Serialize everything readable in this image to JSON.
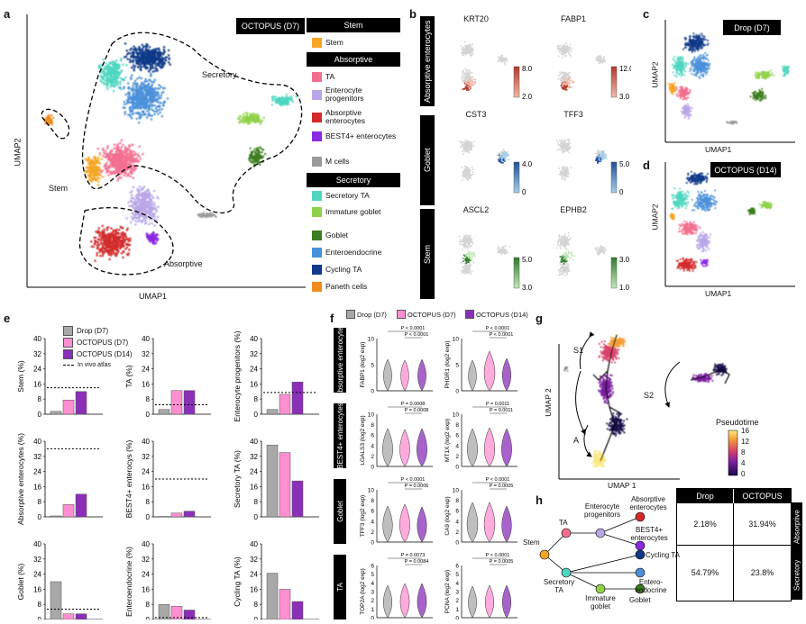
{
  "panel_letters": [
    "a",
    "b",
    "c",
    "d",
    "e",
    "f",
    "g",
    "h"
  ],
  "colors": {
    "stem": "#f5a623",
    "ta": "#f36f8f",
    "enterocyte_progenitors": "#b8a6e8",
    "absorptive_enterocytes": "#d42a2a",
    "best4_enterocytes": "#8a2be2",
    "m_cells": "#9a9a9a",
    "secretory_ta": "#4fd6c0",
    "immature_goblet": "#8fd14a",
    "goblet": "#3c7d1f",
    "enteroendocrine": "#4a90d9",
    "cycling_ta": "#0f3a8a",
    "paneth_cells": "#f08c1e",
    "drop": "#a8a8a8",
    "octopus_d7": "#ff8fd0",
    "octopus_d14": "#8a2fb8"
  },
  "panel_a": {
    "title_box": "OCTOPUS (D7)",
    "xlabel": "UMAP1",
    "ylabel": "UMAP2",
    "region_labels": [
      "Secretory",
      "Stem",
      "Absorptive"
    ],
    "legend": {
      "stem_header": "Stem",
      "absorptive_header": "Absorptive",
      "secretory_header": "Secretory",
      "items_stem": [
        "Stem"
      ],
      "items_absorptive": [
        "TA",
        "Enterocyte progenitors",
        "Absorptive enterocytes",
        "BEST4+ enterocytes",
        "M cells"
      ],
      "items_secretory": [
        "Secretory TA",
        "Immature goblet",
        "Goblet",
        "Enteroendocrine",
        "Cycling TA",
        "Paneth cells"
      ]
    }
  },
  "panel_b": {
    "rows": [
      {
        "row_label": "Absorptive enterocytes",
        "genes": [
          "KRT20",
          "FABP1"
        ],
        "scales": [
          [
            "8.0",
            "2.0"
          ],
          [
            "12.0",
            "3.0"
          ]
        ]
      },
      {
        "row_label": "Goblet",
        "genes": [
          "CST3",
          "TFF3"
        ],
        "scales": [
          [
            "4.0",
            "0"
          ],
          [
            "5.0",
            "0"
          ]
        ]
      },
      {
        "row_label": "Stem",
        "genes": [
          "ASCL2",
          "EPHB2"
        ],
        "scales": [
          [
            "5.0",
            "3.0"
          ],
          [
            "3.0",
            "1.0"
          ]
        ]
      }
    ]
  },
  "panel_c": {
    "title_box": "Drop (D7)",
    "xlabel": "UMAP1",
    "ylabel": "UMAP2"
  },
  "panel_d": {
    "title_box": "OCTOPUS (D14)",
    "xlabel": "UMAP1",
    "ylabel": "UMAP2"
  },
  "panel_e": {
    "legend": [
      "Drop (D7)",
      "OCTOPUS (D7)",
      "OCTOPUS (D14)",
      "In vivo atlas"
    ],
    "yticks": [
      "0",
      "8",
      "16",
      "24",
      "32",
      "40"
    ],
    "charts": [
      {
        "ylabel": "Stem (%)",
        "values": [
          1.5,
          7.5,
          12
        ],
        "atlas": 14
      },
      {
        "ylabel": "TA (%)",
        "values": [
          2.5,
          12.5,
          12.5
        ],
        "atlas": 5
      },
      {
        "ylabel": "Enterocyte progenitors (%)",
        "values": [
          2.5,
          10.5,
          17
        ],
        "atlas": 11.5
      },
      {
        "ylabel": "Absorptive enterocytes (%)",
        "values": [
          0.5,
          6.5,
          12
        ],
        "atlas": 36
      },
      {
        "ylabel": "BEST4+ enterocys (%)",
        "values": [
          0.2,
          2,
          3
        ],
        "atlas": 20
      },
      {
        "ylabel": "Secretory TA (%)",
        "values": [
          38,
          34,
          19
        ],
        "atlas": null
      },
      {
        "ylabel": "Goblet (%)",
        "values": [
          20,
          3,
          3
        ],
        "atlas": 5.5
      },
      {
        "ylabel": "Enteroendocrine (%)",
        "values": [
          8,
          7,
          5
        ],
        "atlas": 1
      },
      {
        "ylabel": "Cycling TA (%)",
        "values": [
          24.5,
          16,
          9.5
        ],
        "atlas": null
      }
    ]
  },
  "panel_f": {
    "legend": [
      "Drop (D7)",
      "OCTOPUS (D7)",
      "OCTOPUS (D14)"
    ],
    "rows": [
      {
        "row_label": "Absorptive enterocytes",
        "genes": [
          "FABP1 (log2 exp)",
          "PHGR1 (log2 exp)"
        ],
        "yticks": [
          "0",
          "5",
          "10"
        ],
        "pvals": [
          [
            "P < 0.0001",
            "P < 0.0001"
          ],
          [
            "P < 0.0001",
            "P < 0.0001"
          ]
        ]
      },
      {
        "row_label": "BEST4+ enterocytes",
        "genes": [
          "LGALS3 (log2 exp)",
          "MT1X (log2 exp)"
        ],
        "yticks": [
          "0",
          "2",
          "4",
          "6",
          "8",
          "10"
        ],
        "pvals": [
          [
            "P = 0.0008",
            "P = 0.0008"
          ],
          [
            "P = 0.0011",
            "P = 0.0011"
          ]
        ]
      },
      {
        "row_label": "Goblet",
        "genes": [
          "TFF3 (log2 exp)",
          "CA9 (log2 exp)"
        ],
        "yticks": [
          "0",
          "2",
          "4",
          "6",
          "8",
          "10"
        ],
        "pvals": [
          [
            "P < 0.0001",
            "P = 0.0006"
          ],
          [
            "P < 0.0001",
            "P = 0.0005"
          ]
        ]
      },
      {
        "row_label": "TA",
        "genes": [
          "TOP2A (log2 exp)",
          "PCNA (log2 exp)"
        ],
        "yticks": [
          "0",
          "1",
          "2",
          "3",
          "4",
          "5",
          "6"
        ],
        "pvals": [
          [
            "P = 0.0073",
            "P = 0.0084"
          ],
          [
            "P < 0.0001",
            "P = 0.0005"
          ]
        ]
      }
    ]
  },
  "panel_g": {
    "xlabel": "UMAP 1",
    "ylabel": "UMAP 2",
    "trajectory_labels": [
      "S1",
      "S2",
      "A"
    ],
    "colorbar_title": "Pseudotime",
    "colorbar_ticks": [
      "16",
      "12",
      "8",
      "4",
      "0"
    ]
  },
  "panel_h": {
    "nodes": [
      "Stem",
      "TA",
      "Enterocyte progenitors",
      "Absorptive enterocytes",
      "BEST4+ enterocytes",
      "Secretory TA",
      "Immature goblet",
      "Cycling TA",
      "Entero-endocrine",
      "Goblet"
    ],
    "table_headers": [
      "Drop",
      "OCTOPUS"
    ],
    "row_labels": [
      "Absorptive",
      "Secretory"
    ],
    "cells": [
      [
        "2.18%",
        "31.94%"
      ],
      [
        "54.79%",
        "23.8%"
      ]
    ]
  }
}
